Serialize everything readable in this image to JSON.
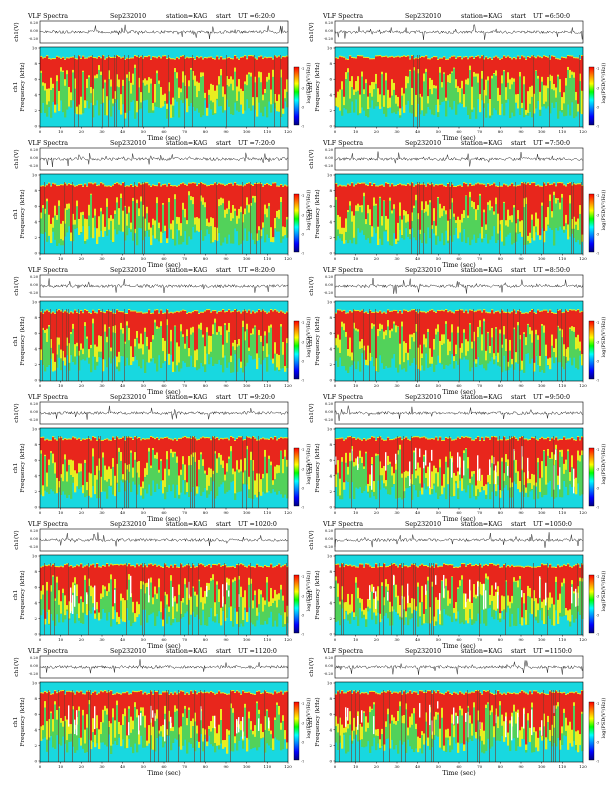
{
  "chart_data": [
    {
      "type": "heatmap",
      "title": "VLF Spectra",
      "date": "Sep232010",
      "station": "station=KAG",
      "start_label": "start",
      "start_ut": "UT =6:20:0",
      "top_ylabel": "ch1(V)",
      "top_ticks": [
        "0.20",
        "0.00",
        "-0.20"
      ],
      "ylabel": "Frequency (kHz)",
      "ylabel_ch": "ch1",
      "yticks": [
        "0",
        "2",
        "4",
        "6",
        "8",
        "10"
      ],
      "xlabel": "Time (sec)",
      "xticks": [
        "0",
        "10",
        "20",
        "30",
        "40",
        "50",
        "60",
        "70",
        "80",
        "90",
        "100",
        "110",
        "120"
      ],
      "colorbar_label": "log(PSD(V²/Hz))",
      "colorbar_ticks": [
        "-1",
        "-3",
        "-5",
        "-7"
      ]
    },
    {
      "type": "heatmap",
      "title": "VLF Spectra",
      "date": "Sep232010",
      "station": "station=KAG",
      "start_label": "start",
      "start_ut": "UT =6:50:0",
      "top_ylabel": "ch1(V)",
      "top_ticks": [
        "0.20",
        "0.00",
        "-0.20"
      ],
      "ylabel": "Frequency (kHz)",
      "ylabel_ch": "ch1",
      "yticks": [
        "0",
        "2",
        "4",
        "6",
        "8",
        "10"
      ],
      "xlabel": "Time (sec)",
      "xticks": [
        "0",
        "10",
        "20",
        "30",
        "40",
        "50",
        "60",
        "70",
        "80",
        "90",
        "100",
        "110",
        "120"
      ],
      "colorbar_label": "log(PSD(V²/Hz))",
      "colorbar_ticks": [
        "-1",
        "-3",
        "-5",
        "-7"
      ]
    },
    {
      "type": "heatmap",
      "title": "VLF Spectra",
      "date": "Sep232010",
      "station": "station=KAG",
      "start_label": "start",
      "start_ut": "UT =7:20:0",
      "top_ylabel": "ch1(V)",
      "top_ticks": [
        "0.20",
        "0.00",
        "-0.20"
      ],
      "ylabel": "Frequency (kHz)",
      "ylabel_ch": "ch1",
      "yticks": [
        "0",
        "2",
        "4",
        "6",
        "8",
        "10"
      ],
      "xlabel": "Time (sec)",
      "xticks": [
        "0",
        "10",
        "20",
        "30",
        "40",
        "50",
        "60",
        "70",
        "80",
        "90",
        "100",
        "110",
        "120"
      ],
      "colorbar_label": "log(PSD(V²/Hz))",
      "colorbar_ticks": [
        "-1",
        "-3",
        "-5",
        "-7"
      ]
    },
    {
      "type": "heatmap",
      "title": "VLF Spectra",
      "date": "Sep232010",
      "station": "station=KAG",
      "start_label": "start",
      "start_ut": "UT =7:50:0",
      "top_ylabel": "ch1(V)",
      "top_ticks": [
        "0.20",
        "0.00",
        "-0.20"
      ],
      "ylabel": "Frequency (kHz)",
      "ylabel_ch": "ch1",
      "yticks": [
        "0",
        "2",
        "4",
        "6",
        "8",
        "10"
      ],
      "xlabel": "Time (sec)",
      "xticks": [
        "0",
        "10",
        "20",
        "30",
        "40",
        "50",
        "60",
        "70",
        "80",
        "90",
        "100",
        "110",
        "120"
      ],
      "colorbar_label": "log(PSD(V²/Hz))",
      "colorbar_ticks": [
        "-1",
        "-3",
        "-5",
        "-7"
      ]
    },
    {
      "type": "heatmap",
      "title": "VLF Spectra",
      "date": "Sep232010",
      "station": "station=KAG",
      "start_label": "start",
      "start_ut": "UT =8:20:0",
      "top_ylabel": "ch1(V)",
      "top_ticks": [
        "0.20",
        "0.00",
        "-0.20"
      ],
      "ylabel": "Frequency (kHz)",
      "ylabel_ch": "ch1",
      "yticks": [
        "0",
        "2",
        "4",
        "6",
        "8",
        "10"
      ],
      "xlabel": "Time (sec)",
      "xticks": [
        "0",
        "10",
        "20",
        "30",
        "40",
        "50",
        "60",
        "70",
        "80",
        "90",
        "100",
        "110",
        "120"
      ],
      "colorbar_label": "log(PSD(V²/Hz))",
      "colorbar_ticks": [
        "-1",
        "-3",
        "-5",
        "-7"
      ]
    },
    {
      "type": "heatmap",
      "title": "VLF Spectra",
      "date": "Sep232010",
      "station": "station=KAG",
      "start_label": "start",
      "start_ut": "UT =8:50:0",
      "top_ylabel": "ch1(V)",
      "top_ticks": [
        "0.20",
        "0.00",
        "-0.20"
      ],
      "ylabel": "Frequency (kHz)",
      "ylabel_ch": "ch1",
      "yticks": [
        "0",
        "2",
        "4",
        "6",
        "8",
        "10"
      ],
      "xlabel": "Time (sec)",
      "xticks": [
        "0",
        "10",
        "20",
        "30",
        "40",
        "50",
        "60",
        "70",
        "80",
        "90",
        "100",
        "110",
        "120"
      ],
      "colorbar_label": "log(PSD(V²/Hz))",
      "colorbar_ticks": [
        "-1",
        "-3",
        "-5",
        "-7"
      ]
    },
    {
      "type": "heatmap",
      "title": "VLF Spectra",
      "date": "Sep232010",
      "station": "station=KAG",
      "start_label": "start",
      "start_ut": "UT =9:20:0",
      "top_ylabel": "ch1(V)",
      "top_ticks": [
        "0.20",
        "0.00",
        "-0.20"
      ],
      "ylabel": "Frequency (kHz)",
      "ylabel_ch": "ch1",
      "yticks": [
        "0",
        "2",
        "4",
        "6",
        "8",
        "10"
      ],
      "xlabel": "Time (sec)",
      "xticks": [
        "0",
        "10",
        "20",
        "30",
        "40",
        "50",
        "60",
        "70",
        "80",
        "90",
        "100",
        "110",
        "120"
      ],
      "colorbar_label": "log(PSD(V²/Hz))",
      "colorbar_ticks": [
        "-1",
        "-3",
        "-5",
        "-7"
      ]
    },
    {
      "type": "heatmap",
      "title": "VLF Spectra",
      "date": "Sep232010",
      "station": "station=KAG",
      "start_label": "start",
      "start_ut": "UT =9:50:0",
      "top_ylabel": "ch1(V)",
      "top_ticks": [
        "0.20",
        "0.00",
        "-0.20"
      ],
      "ylabel": "Frequency (kHz)",
      "ylabel_ch": "ch1",
      "yticks": [
        "0",
        "2",
        "4",
        "6",
        "8",
        "10"
      ],
      "xlabel": "Time (sec)",
      "xticks": [
        "0",
        "10",
        "20",
        "30",
        "40",
        "50",
        "60",
        "70",
        "80",
        "90",
        "100",
        "110",
        "120"
      ],
      "colorbar_label": "log(PSD(V²/Hz))",
      "colorbar_ticks": [
        "-1",
        "-3",
        "-5",
        "-7"
      ]
    },
    {
      "type": "heatmap",
      "title": "VLF Spectra",
      "date": "Sep232010",
      "station": "station=KAG",
      "start_label": "start",
      "start_ut": "UT =1020:0",
      "top_ylabel": "ch1(V)",
      "top_ticks": [
        "0.20",
        "0.00",
        "-0.20"
      ],
      "ylabel": "Frequency (kHz)",
      "ylabel_ch": "ch1",
      "yticks": [
        "0",
        "2",
        "4",
        "6",
        "8",
        "10"
      ],
      "xlabel": "Time (sec)",
      "xticks": [
        "0",
        "10",
        "20",
        "30",
        "40",
        "50",
        "60",
        "70",
        "80",
        "90",
        "100",
        "110",
        "120"
      ],
      "colorbar_label": "log(PSD(V²/Hz))",
      "colorbar_ticks": [
        "-1",
        "-3",
        "-5",
        "-7"
      ]
    },
    {
      "type": "heatmap",
      "title": "VLF Spectra",
      "date": "Sep232010",
      "station": "station=KAG",
      "start_label": "start",
      "start_ut": "UT =1050:0",
      "top_ylabel": "ch1(V)",
      "top_ticks": [
        "0.20",
        "0.00",
        "-0.20"
      ],
      "ylabel": "Frequency (kHz)",
      "ylabel_ch": "ch1",
      "yticks": [
        "0",
        "2",
        "4",
        "6",
        "8",
        "10"
      ],
      "xlabel": "Time (sec)",
      "xticks": [
        "0",
        "10",
        "20",
        "30",
        "40",
        "50",
        "60",
        "70",
        "80",
        "90",
        "100",
        "110",
        "120"
      ],
      "colorbar_label": "log(PSD(V²/Hz))",
      "colorbar_ticks": [
        "-1",
        "-3",
        "-5",
        "-7"
      ]
    },
    {
      "type": "heatmap",
      "title": "VLF Spectra",
      "date": "Sep232010",
      "station": "station=KAG",
      "start_label": "start",
      "start_ut": "UT =1120:0",
      "top_ylabel": "ch1(V)",
      "top_ticks": [
        "0.20",
        "0.00",
        "-0.20"
      ],
      "ylabel": "Frequency (kHz)",
      "ylabel_ch": "ch1",
      "yticks": [
        "0",
        "2",
        "4",
        "6",
        "8",
        "10"
      ],
      "xlabel": "Time (sec)",
      "xticks": [
        "0",
        "10",
        "20",
        "30",
        "40",
        "50",
        "60",
        "70",
        "80",
        "90",
        "100",
        "110",
        "120"
      ],
      "colorbar_label": "log(PSD(V²/Hz))",
      "colorbar_ticks": [
        "-1",
        "-3",
        "-5",
        "-7"
      ]
    },
    {
      "type": "heatmap",
      "title": "VLF Spectra",
      "date": "Sep232010",
      "station": "station=KAG",
      "start_label": "start",
      "start_ut": "UT =1150:0",
      "top_ylabel": "ch1(V)",
      "top_ticks": [
        "0.20",
        "0.00",
        "-0.20"
      ],
      "ylabel": "Frequency (kHz)",
      "ylabel_ch": "ch1",
      "yticks": [
        "0",
        "2",
        "4",
        "6",
        "8",
        "10"
      ],
      "xlabel": "Time (sec)",
      "xticks": [
        "0",
        "10",
        "20",
        "30",
        "40",
        "50",
        "60",
        "70",
        "80",
        "90",
        "100",
        "110",
        "120"
      ],
      "colorbar_label": "log(PSD(V²/Hz))",
      "colorbar_ticks": [
        "-1",
        "-3",
        "-5",
        "-7"
      ]
    }
  ],
  "colors": {
    "cyan": "#18d8e0",
    "green": "#52d25a",
    "yellow": "#e8ee20",
    "red": "#e8261c",
    "white": "#ffffff",
    "dark": "#7a3a2a",
    "colorbar": [
      "#ff0000",
      "#ff8000",
      "#ffff00",
      "#00ff00",
      "#00ffff",
      "#0080ff",
      "#0000ff",
      "#000080"
    ]
  }
}
